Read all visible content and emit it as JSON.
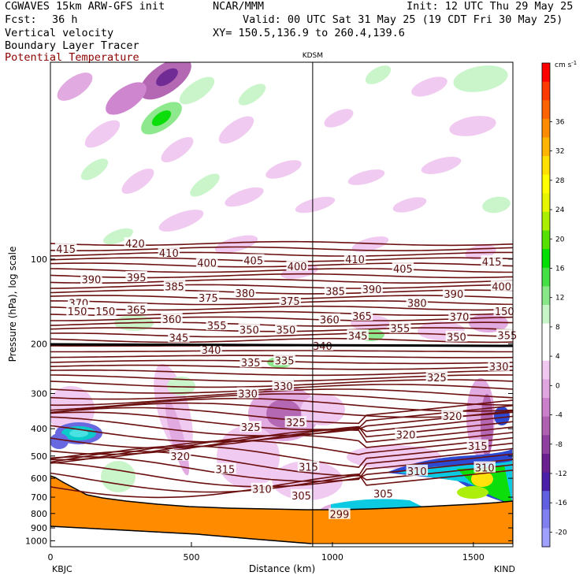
{
  "header": {
    "model": "CGWAVES 15km ARW-GFS init",
    "org": "NCAR/MMM",
    "init": "Init: 12 UTC Thu 29 May 25",
    "fcst_label": "Fcst:",
    "fcst_value": "36 h",
    "valid": "Valid: 00 UTC Sat 31 May 25 (19 CDT Fri 30 May 25)",
    "field1": "Vertical velocity",
    "field2": "Boundary Layer Tracer",
    "field3": "Potential Temperature",
    "xy": "XY= 150.5,136.9 to 260.4,139.6"
  },
  "colors": {
    "theta_line": "#6b0f0f",
    "terrain": "#ff8c00",
    "terrain_edge": "#000000"
  },
  "chart_data": {
    "type": "cross-section",
    "xlabel": "Distance (km)",
    "ylabel": "Pressure (hPa), log scale",
    "x_ticks": [
      0,
      500,
      1000,
      1500
    ],
    "xlim": [
      0,
      1640
    ],
    "y_ticks": [
      100,
      200,
      300,
      400,
      500,
      600,
      700,
      800,
      900,
      1000
    ],
    "ylim": [
      1050,
      20
    ],
    "y_scale": "log",
    "left_station": "KBJC",
    "right_station": "KIND",
    "mid_station": "KDSM",
    "mid_station_km": 930,
    "colorbar": {
      "unit": "cm s",
      "unit_exp": "-1",
      "ticks": [
        36,
        32,
        28,
        24,
        20,
        16,
        12,
        8,
        4,
        0,
        -4,
        -8,
        -12,
        -16,
        -20
      ],
      "colors": [
        "#ff0000",
        "#ff3a00",
        "#ff6400",
        "#ff8c00",
        "#ffb400",
        "#ffe000",
        "#ffff00",
        "#e6f500",
        "#aaee00",
        "#55e000",
        "#00dd00",
        "#44e044",
        "#88e888",
        "#c8f5c8",
        "#ffffff",
        "#ffffff",
        "#f0c8f0",
        "#e0a6e0",
        "#cc80cc",
        "#b060b0",
        "#9040a0",
        "#6a2090",
        "#4a20a8",
        "#6060e0",
        "#8080f0",
        "#a0a0ff"
      ]
    },
    "theta_labels": [
      {
        "text": "415",
        "x": 55,
        "p": 92
      },
      {
        "text": "420",
        "x": 300,
        "p": 88
      },
      {
        "text": "410",
        "x": 420,
        "p": 95
      },
      {
        "text": "400",
        "x": 555,
        "p": 103
      },
      {
        "text": "405",
        "x": 720,
        "p": 101
      },
      {
        "text": "400",
        "x": 875,
        "p": 106
      },
      {
        "text": "410",
        "x": 1080,
        "p": 100
      },
      {
        "text": "415",
        "x": 1565,
        "p": 102
      },
      {
        "text": "390",
        "x": 145,
        "p": 118
      },
      {
        "text": "395",
        "x": 305,
        "p": 116
      },
      {
        "text": "385",
        "x": 440,
        "p": 125
      },
      {
        "text": "375",
        "x": 560,
        "p": 137
      },
      {
        "text": "380",
        "x": 690,
        "p": 132
      },
      {
        "text": "405",
        "x": 1250,
        "p": 108
      },
      {
        "text": "390",
        "x": 1140,
        "p": 128
      },
      {
        "text": "385",
        "x": 1010,
        "p": 130
      },
      {
        "text": "375",
        "x": 850,
        "p": 141
      },
      {
        "text": "380",
        "x": 1300,
        "p": 143
      },
      {
        "text": "390",
        "x": 1430,
        "p": 133
      },
      {
        "text": "400",
        "x": 1600,
        "p": 125
      },
      {
        "text": "370",
        "x": 100,
        "p": 143
      },
      {
        "text": "150",
        "x": 95,
        "p": 153
      },
      {
        "text": "150",
        "x": 195,
        "p": 153
      },
      {
        "text": "365",
        "x": 305,
        "p": 151
      },
      {
        "text": "360",
        "x": 430,
        "p": 163
      },
      {
        "text": "355",
        "x": 590,
        "p": 172
      },
      {
        "text": "350",
        "x": 705,
        "p": 178
      },
      {
        "text": "350",
        "x": 835,
        "p": 178
      },
      {
        "text": "360",
        "x": 990,
        "p": 164
      },
      {
        "text": "365",
        "x": 1105,
        "p": 159
      },
      {
        "text": "355",
        "x": 1240,
        "p": 176
      },
      {
        "text": "370",
        "x": 1450,
        "p": 160
      },
      {
        "text": "150",
        "x": 1610,
        "p": 153
      },
      {
        "text": "350",
        "x": 1440,
        "p": 189
      },
      {
        "text": "355",
        "x": 1620,
        "p": 186
      },
      {
        "text": "345",
        "x": 455,
        "p": 190
      },
      {
        "text": "345",
        "x": 1090,
        "p": 187
      },
      {
        "text": "340",
        "x": 570,
        "p": 210
      },
      {
        "text": "340",
        "x": 965,
        "p": 203
      },
      {
        "text": "335",
        "x": 710,
        "p": 233
      },
      {
        "text": "335",
        "x": 830,
        "p": 229
      },
      {
        "text": "330",
        "x": 1590,
        "p": 240
      },
      {
        "text": "325",
        "x": 1370,
        "p": 263
      },
      {
        "text": "330",
        "x": 825,
        "p": 282
      },
      {
        "text": "330",
        "x": 700,
        "p": 300
      },
      {
        "text": "325",
        "x": 710,
        "p": 395
      },
      {
        "text": "325",
        "x": 870,
        "p": 380
      },
      {
        "text": "320",
        "x": 1425,
        "p": 360
      },
      {
        "text": "320",
        "x": 1260,
        "p": 420
      },
      {
        "text": "320",
        "x": 460,
        "p": 500
      },
      {
        "text": "315",
        "x": 1515,
        "p": 460
      },
      {
        "text": "315",
        "x": 620,
        "p": 557
      },
      {
        "text": "315",
        "x": 915,
        "p": 546
      },
      {
        "text": "310",
        "x": 1300,
        "p": 565
      },
      {
        "text": "310",
        "x": 1540,
        "p": 550
      },
      {
        "text": "310",
        "x": 750,
        "p": 655
      },
      {
        "text": "305",
        "x": 890,
        "p": 690
      },
      {
        "text": "305",
        "x": 1180,
        "p": 680
      },
      {
        "text": "299",
        "x": 1025,
        "p": 805
      }
    ]
  }
}
